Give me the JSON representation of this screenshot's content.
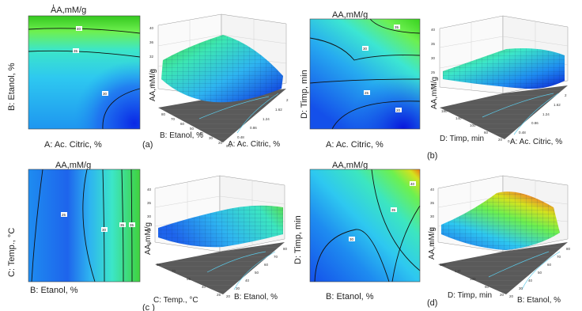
{
  "figure": {
    "panel_labels": [
      "(a)",
      "(b)",
      "(c )",
      "(d)"
    ],
    "top_fragment": ","
  },
  "chart_data": [
    {
      "type": "heatmap",
      "panel": "a",
      "title": "AA,mM/g",
      "xlabel": "A: Ac. Citric, %",
      "ylabel": "B: Etanol, %",
      "colormap": [
        "#0a1ee0",
        "#1e78f0",
        "#2ec8f0",
        "#3ce6c0",
        "#6cf050",
        "#2fc81e"
      ],
      "contour_labels": [
        "40",
        "35",
        "30"
      ],
      "xlim": [
        0.1,
        3.0
      ],
      "ylim": [
        20,
        80
      ]
    },
    {
      "type": "surface",
      "panel": "a",
      "zlabel": "AA,mM/g",
      "xlabel": "A: Ac. Citric, %",
      "ylabel": "B: Etanol, %",
      "z_ticks": [
        "40",
        "36",
        "32",
        "28",
        "24"
      ],
      "x_ticks": [
        "0.1",
        "0.48",
        "0.86",
        "1.24",
        "1.62",
        "2"
      ],
      "y_ticks": [
        "20",
        "30",
        "40",
        "50",
        "60",
        "70",
        "80"
      ]
    },
    {
      "type": "heatmap",
      "panel": "b",
      "title": "AA,mM/g",
      "xlabel": "A: Ac. Citric, %",
      "ylabel": "D: Timp, min",
      "colormap": [
        "#0a1ee0",
        "#1e78f0",
        "#2ec8f0",
        "#3ce6c0",
        "#6cf050",
        "#2fc81e"
      ],
      "contour_labels": [
        "35",
        "30",
        "25",
        "20"
      ],
      "xlim": [
        0.1,
        3.0
      ],
      "ylim": [
        20,
        180
      ]
    },
    {
      "type": "surface",
      "panel": "b",
      "zlabel": "AA,mM/g",
      "xlabel": "A: Ac. Citric, %",
      "ylabel": "D: Timp, min",
      "z_ticks": [
        "40",
        "35",
        "30",
        "25",
        "20"
      ],
      "x_ticks": [
        "0.1",
        "0.48",
        "0.86",
        "1.24",
        "1.62",
        "2"
      ],
      "y_ticks": [
        "20",
        "60",
        "100",
        "140",
        "180"
      ]
    },
    {
      "type": "heatmap",
      "panel": "c",
      "title": "AA,mM/g",
      "xlabel": "B: Etanol, %",
      "ylabel": "C: Temp., °C",
      "colormap": [
        "#0a1ee0",
        "#1e78f0",
        "#2ec8f0",
        "#3ce6c0",
        "#6cf050",
        "#2fc81e"
      ],
      "contour_labels": [
        "25",
        "30",
        "35",
        "35"
      ],
      "xlim": [
        20,
        80
      ],
      "ylim": [
        25,
        80
      ]
    },
    {
      "type": "surface",
      "panel": "c",
      "zlabel": "AA,mM/g",
      "xlabel": "B: Etanol, %",
      "ylabel": "C: Temp., °C",
      "z_ticks": [
        "40",
        "35",
        "30",
        "25",
        "20"
      ],
      "x_ticks": [
        "20",
        "30",
        "40",
        "50",
        "60",
        "70",
        "80"
      ],
      "y_ticks": [
        "25",
        "40",
        "55",
        "70",
        "80"
      ]
    },
    {
      "type": "heatmap",
      "panel": "d",
      "title": "AA,mM/g",
      "xlabel": "B: Etanol, %",
      "ylabel": "D: Timp, min",
      "colormap": [
        "#0a1ee0",
        "#1e78f0",
        "#2ec8f0",
        "#3ce6c0",
        "#6cf050",
        "#d4e21e",
        "#f07814"
      ],
      "contour_labels": [
        "40",
        "35",
        "30"
      ],
      "xlim": [
        20,
        80
      ],
      "ylim": [
        20,
        180
      ]
    },
    {
      "type": "surface",
      "panel": "d",
      "zlabel": "AA,mM/g",
      "xlabel": "B: Etanol, %",
      "ylabel": "D: Timp, min",
      "z_ticks": [
        "40",
        "35",
        "30",
        "25",
        "20"
      ],
      "x_ticks": [
        "20",
        "30",
        "40",
        "50",
        "60",
        "70",
        "80"
      ],
      "y_ticks": [
        "20",
        "60",
        "100",
        "140",
        "180"
      ]
    }
  ]
}
